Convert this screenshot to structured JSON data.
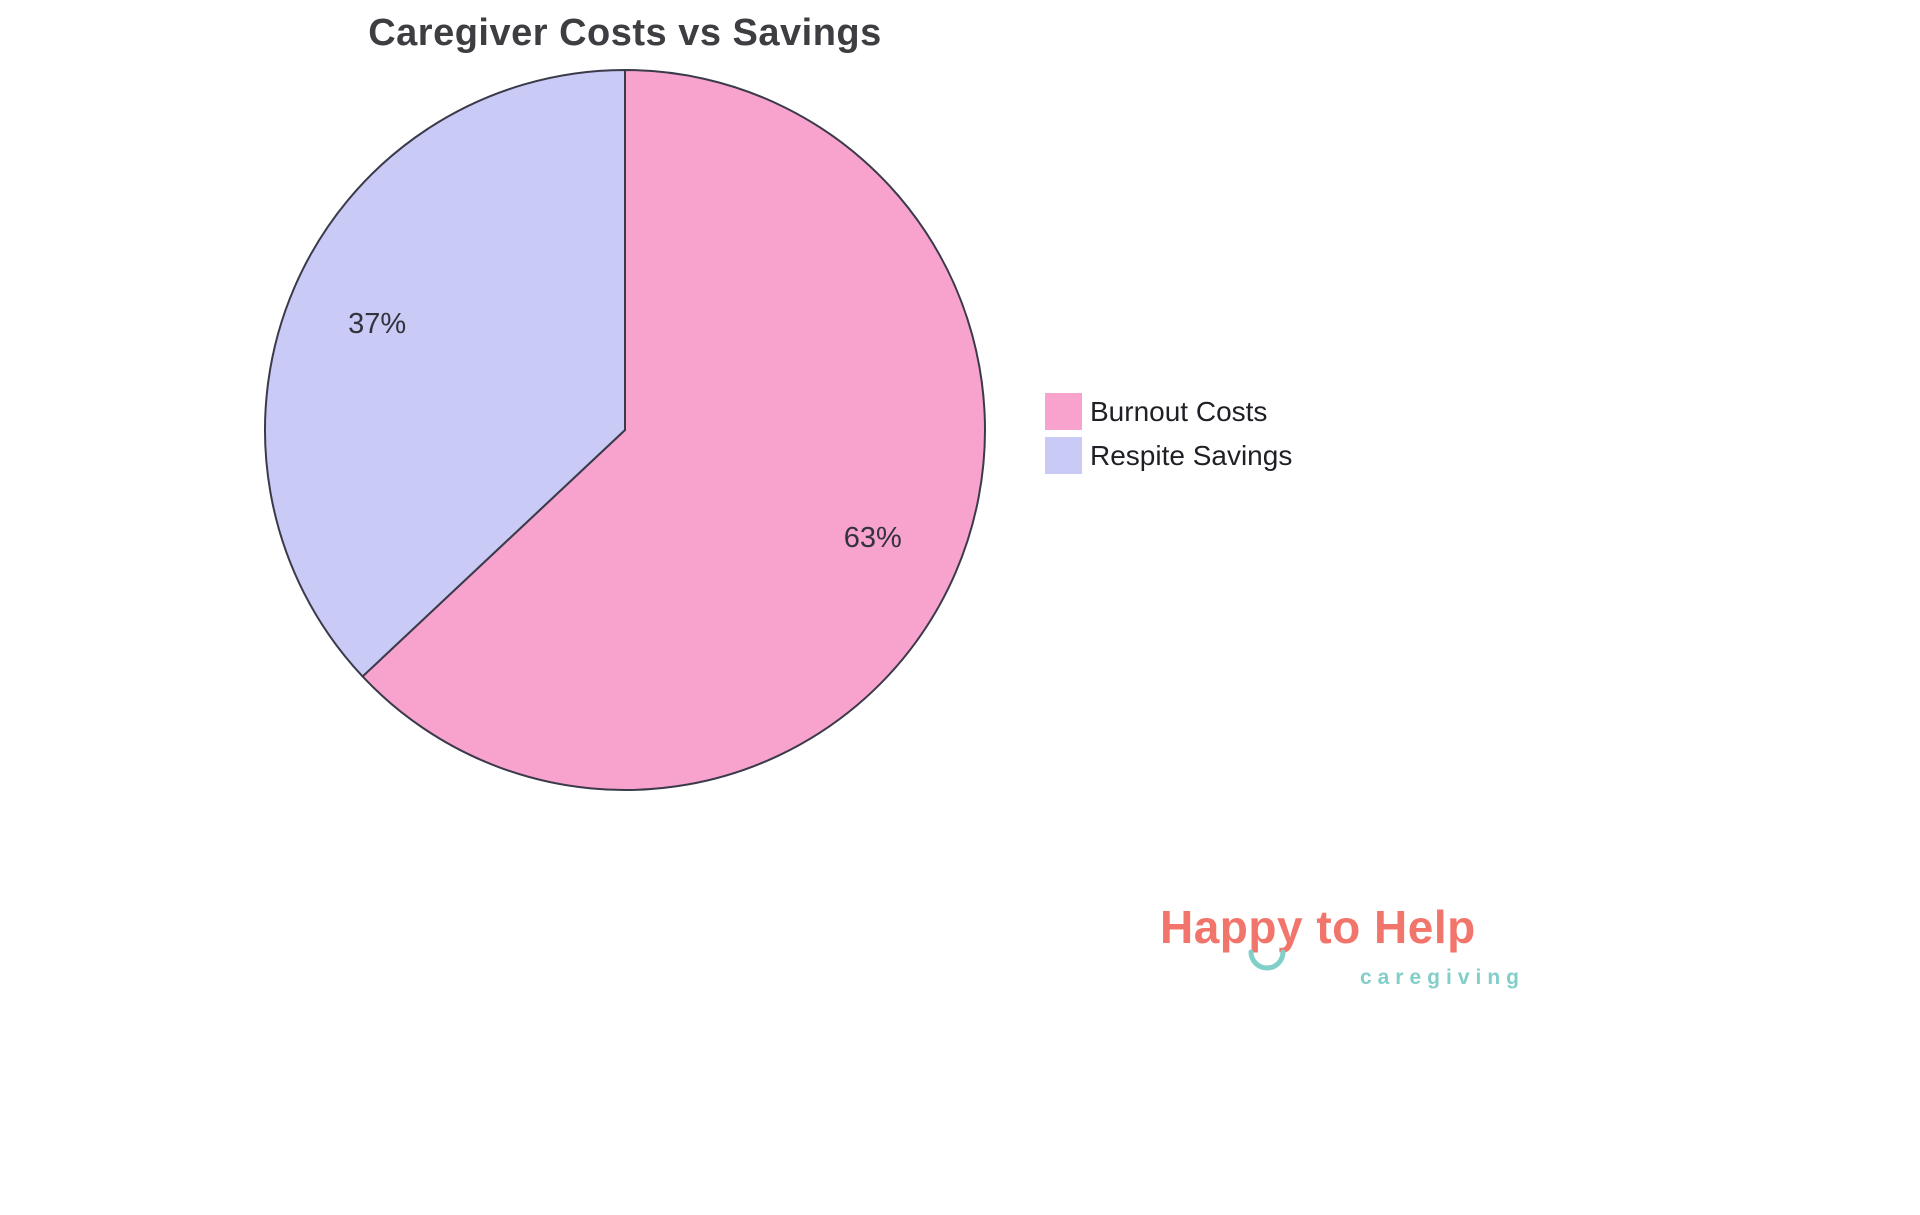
{
  "chart_data": {
    "type": "pie",
    "title": "Caregiver Costs vs Savings",
    "labels": [
      "Burnout Costs",
      "Respite Savings"
    ],
    "values": [
      63,
      37
    ],
    "value_labels": [
      "63%",
      "37%"
    ],
    "colors": [
      "#F8A3CE",
      "#C9CAF5"
    ],
    "outline_color": "#3A3A4A",
    "start_angle": "top",
    "direction": "clockwise",
    "label_radius_ratio": 0.75,
    "legend_position": "right"
  },
  "legend": {
    "items": [
      {
        "label": "Burnout Costs",
        "color": "#F8A3CE"
      },
      {
        "label": "Respite Savings",
        "color": "#C9CAF5"
      }
    ]
  },
  "logo": {
    "brand": "Happy to Help",
    "tagline": "caregiving",
    "brand_color": "#F2756C",
    "accent_color": "#82CFC9"
  }
}
